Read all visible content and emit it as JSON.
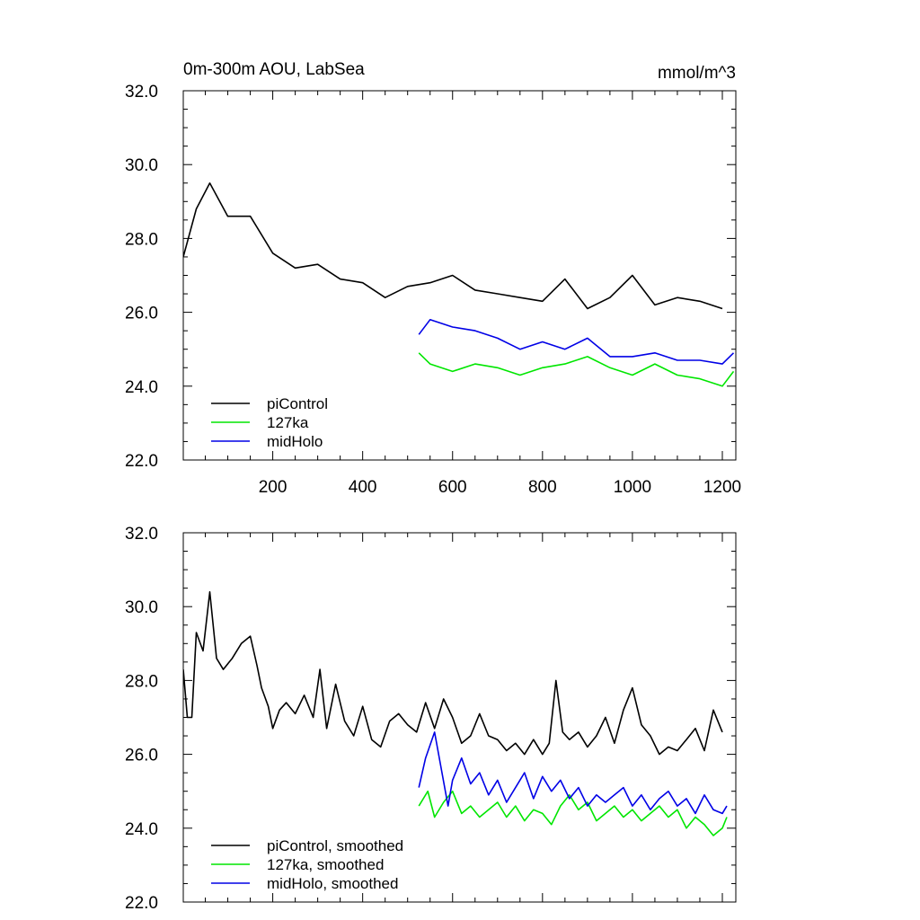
{
  "colors": {
    "piControl": "#000000",
    "127ka": "#00e600",
    "midHolo": "#0000e6"
  },
  "chart_data": [
    {
      "type": "line",
      "title": "0m-300m AOU, LabSea",
      "units": "mmol/m^3",
      "xlim": [
        1,
        1230
      ],
      "ylim": [
        22,
        32
      ],
      "xticks": [
        200,
        400,
        600,
        800,
        1000,
        1200
      ],
      "xtick_labels": [
        "200",
        "400",
        "600",
        "800",
        "1000",
        "1200"
      ],
      "yticks": [
        22,
        24,
        26,
        28,
        30,
        32
      ],
      "ytick_labels": [
        "22.0",
        "24.0",
        "26.0",
        "28.0",
        "30.0",
        "32.0"
      ],
      "legend_position": "bottom-left",
      "series": [
        {
          "name": "piControl",
          "color": "#000000",
          "x": [
            1,
            30,
            60,
            100,
            150,
            200,
            250,
            300,
            350,
            400,
            450,
            500,
            550,
            600,
            650,
            700,
            750,
            800,
            850,
            900,
            950,
            1000,
            1050,
            1100,
            1150,
            1200
          ],
          "y": [
            27.5,
            28.8,
            29.5,
            28.6,
            28.6,
            27.6,
            27.2,
            27.3,
            26.9,
            26.8,
            26.4,
            26.7,
            26.8,
            27.0,
            26.6,
            26.5,
            26.4,
            26.3,
            26.9,
            26.1,
            26.4,
            27.0,
            26.2,
            26.4,
            26.3,
            26.1
          ]
        },
        {
          "name": "127ka",
          "color": "#00e600",
          "x": [
            525,
            550,
            600,
            650,
            700,
            750,
            800,
            850,
            900,
            950,
            1000,
            1050,
            1100,
            1150,
            1200,
            1225
          ],
          "y": [
            24.9,
            24.6,
            24.4,
            24.6,
            24.5,
            24.3,
            24.5,
            24.6,
            24.8,
            24.5,
            24.3,
            24.6,
            24.3,
            24.2,
            24.0,
            24.4
          ]
        },
        {
          "name": "midHolo",
          "color": "#0000e6",
          "x": [
            525,
            550,
            600,
            650,
            700,
            750,
            800,
            850,
            900,
            950,
            1000,
            1050,
            1100,
            1150,
            1200,
            1225
          ],
          "y": [
            25.4,
            25.8,
            25.6,
            25.5,
            25.3,
            25.0,
            25.2,
            25.0,
            25.3,
            24.8,
            24.8,
            24.9,
            24.7,
            24.7,
            24.6,
            24.9
          ]
        }
      ]
    },
    {
      "type": "line",
      "xlim": [
        1,
        1230
      ],
      "ylim": [
        22,
        32
      ],
      "xticks": [
        200,
        400,
        600,
        800,
        1000,
        1200
      ],
      "yticks": [
        22,
        24,
        26,
        28,
        30,
        32
      ],
      "ytick_labels": [
        "22.0",
        "24.0",
        "26.0",
        "28.0",
        "30.0",
        "32.0"
      ],
      "legend_position": "bottom-left",
      "series": [
        {
          "name": "piControl, smoothed",
          "color": "#000000",
          "x": [
            1,
            10,
            20,
            30,
            45,
            60,
            75,
            90,
            110,
            130,
            150,
            165,
            175,
            190,
            200,
            215,
            230,
            250,
            270,
            290,
            305,
            320,
            340,
            360,
            380,
            400,
            420,
            440,
            460,
            480,
            500,
            520,
            540,
            560,
            580,
            600,
            620,
            640,
            660,
            680,
            700,
            720,
            740,
            760,
            780,
            800,
            815,
            830,
            845,
            860,
            880,
            900,
            920,
            940,
            960,
            980,
            1000,
            1020,
            1040,
            1060,
            1080,
            1100,
            1120,
            1140,
            1160,
            1180,
            1200
          ],
          "y": [
            28.3,
            27.0,
            27.0,
            29.3,
            28.8,
            30.4,
            28.6,
            28.3,
            28.6,
            29.0,
            29.2,
            28.4,
            27.8,
            27.3,
            26.7,
            27.2,
            27.4,
            27.1,
            27.6,
            27.0,
            28.3,
            26.7,
            27.9,
            26.9,
            26.5,
            27.3,
            26.4,
            26.2,
            26.9,
            27.1,
            26.8,
            26.6,
            27.4,
            26.7,
            27.5,
            27.0,
            26.3,
            26.5,
            27.1,
            26.5,
            26.4,
            26.1,
            26.3,
            26.0,
            26.4,
            26.0,
            26.3,
            28.0,
            26.6,
            26.4,
            26.6,
            26.2,
            26.5,
            27.0,
            26.3,
            27.2,
            27.8,
            26.8,
            26.5,
            26.0,
            26.2,
            26.1,
            26.4,
            26.7,
            26.1,
            27.2,
            26.6
          ]
        },
        {
          "name": "127ka, smoothed",
          "color": "#00e600",
          "x": [
            525,
            545,
            560,
            580,
            600,
            620,
            640,
            660,
            680,
            700,
            720,
            740,
            760,
            780,
            800,
            820,
            840,
            860,
            880,
            900,
            920,
            940,
            960,
            980,
            1000,
            1020,
            1040,
            1060,
            1080,
            1100,
            1120,
            1140,
            1160,
            1180,
            1200,
            1210
          ],
          "y": [
            24.6,
            25.0,
            24.3,
            24.7,
            25.0,
            24.4,
            24.6,
            24.3,
            24.5,
            24.7,
            24.3,
            24.6,
            24.2,
            24.5,
            24.4,
            24.1,
            24.6,
            24.9,
            24.5,
            24.7,
            24.2,
            24.4,
            24.6,
            24.3,
            24.5,
            24.2,
            24.4,
            24.6,
            24.3,
            24.5,
            24.0,
            24.3,
            24.1,
            23.8,
            24.0,
            24.3
          ]
        },
        {
          "name": "midHolo, smoothed",
          "color": "#0000e6",
          "x": [
            525,
            540,
            560,
            575,
            590,
            600,
            620,
            640,
            660,
            680,
            700,
            720,
            740,
            760,
            780,
            800,
            820,
            840,
            860,
            880,
            900,
            920,
            940,
            960,
            980,
            1000,
            1020,
            1040,
            1060,
            1080,
            1100,
            1120,
            1140,
            1160,
            1180,
            1200,
            1210
          ],
          "y": [
            25.1,
            25.9,
            26.6,
            25.6,
            24.6,
            25.3,
            25.9,
            25.2,
            25.5,
            24.9,
            25.3,
            24.7,
            25.1,
            25.5,
            24.8,
            25.4,
            25.0,
            25.3,
            24.8,
            25.1,
            24.6,
            24.9,
            24.7,
            24.9,
            25.1,
            24.6,
            24.9,
            24.5,
            24.8,
            25.0,
            24.6,
            24.8,
            24.4,
            24.9,
            24.5,
            24.4,
            24.6
          ]
        }
      ]
    }
  ]
}
